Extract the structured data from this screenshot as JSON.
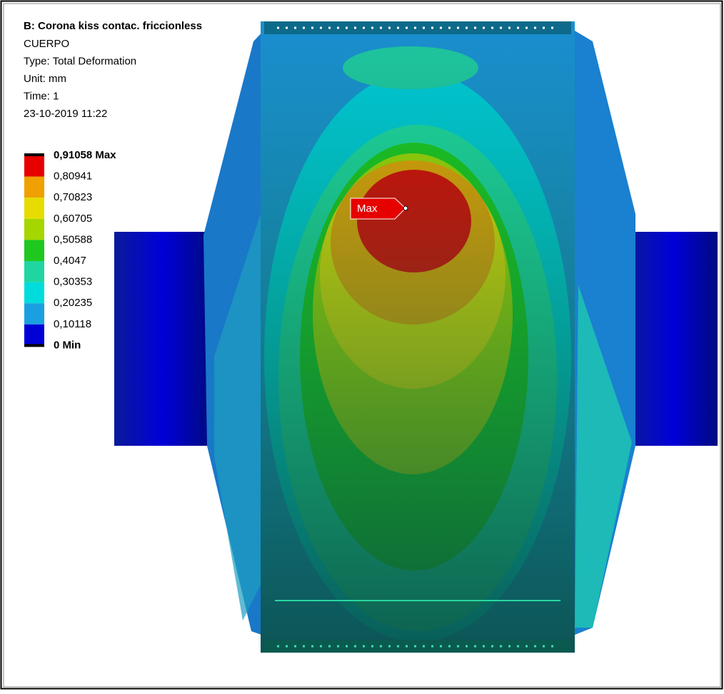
{
  "header": {
    "title": "B: Corona kiss contac. friccionless",
    "lines": [
      "CUERPO",
      "Type: Total Deformation",
      "Unit: mm",
      "Time: 1",
      "23-10-2019 11:22"
    ]
  },
  "legend": {
    "labels": [
      "0,91058 Max",
      "0,80941",
      "0,70823",
      "0,60705",
      "0,50588",
      "0,4047",
      "0,30353",
      "0,20235",
      "0,10118",
      "0 Min"
    ],
    "colors": [
      "#e60000",
      "#f0a000",
      "#e6dc00",
      "#a6d600",
      "#1ec81e",
      "#1fd6a0",
      "#00dcdc",
      "#1aa0e0",
      "#0000d6"
    ]
  },
  "probe": {
    "label": "Max"
  }
}
